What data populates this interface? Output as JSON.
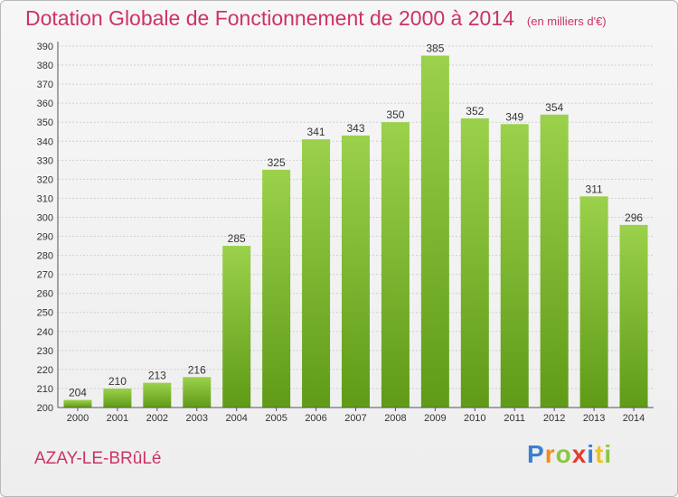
{
  "header": {
    "title": "Dotation Globale de Fonctionnement de 2000 à 2014",
    "unit": "(en milliers d'€)"
  },
  "footer": {
    "commune": "AZAY-LE-BRûLé",
    "logo_parts": [
      "P",
      "r",
      "o",
      "x",
      "i",
      "t",
      "i"
    ],
    "logo_colors": [
      "#3b7fd1",
      "#f28c1b",
      "#8cc63f",
      "#e63b2e",
      "#3b7fd1",
      "#f2c21b",
      "#8cc63f"
    ]
  },
  "colors": {
    "bar_light": "#9bd14b",
    "bar_dark": "#5f9b17",
    "grid": "#cfcfcf",
    "axis": "#555555",
    "title": "#cc3366"
  },
  "chart_data": {
    "type": "bar",
    "title": "Dotation Globale de Fonctionnement de 2000 à 2014",
    "subtitle": "(en milliers d'€)",
    "xlabel": "",
    "ylabel": "",
    "categories": [
      "2000",
      "2001",
      "2002",
      "2003",
      "2004",
      "2005",
      "2006",
      "2007",
      "2008",
      "2009",
      "2010",
      "2011",
      "2012",
      "2013",
      "2014"
    ],
    "values": [
      204,
      210,
      213,
      216,
      285,
      325,
      341,
      343,
      350,
      385,
      352,
      349,
      354,
      311,
      296
    ],
    "ylim": [
      200,
      390
    ],
    "ytick_step": 10,
    "grid": true,
    "legend": "none"
  }
}
